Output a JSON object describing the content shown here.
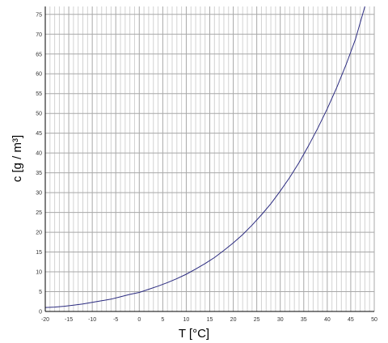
{
  "chart_data": {
    "type": "line",
    "title": "",
    "xlabel": "T [°C]",
    "ylabel": "c [g / m³]",
    "xlim": [
      -20,
      50
    ],
    "ylim": [
      0,
      77
    ],
    "x_ticks": [
      "-20",
      "-15",
      "-10",
      "-5",
      "0",
      "5",
      "10",
      "15",
      "20",
      "25",
      "30",
      "35",
      "40",
      "45",
      "50"
    ],
    "y_ticks": [
      "0",
      "5",
      "10",
      "15",
      "20",
      "25",
      "30",
      "35",
      "40",
      "45",
      "50",
      "55",
      "60",
      "65",
      "70",
      "75"
    ],
    "grid": true,
    "series_color": "#2b2b80",
    "series": [
      {
        "x": [
          -20,
          -18,
          -16,
          -14,
          -12,
          -10,
          -8,
          -6,
          -4,
          -2,
          0,
          2,
          4,
          6,
          8,
          10,
          12,
          14,
          16,
          18,
          20,
          22,
          24,
          26,
          28,
          30,
          32,
          34,
          36,
          38,
          40,
          42,
          44,
          46,
          48
        ],
        "y": [
          1.0,
          1.1,
          1.3,
          1.6,
          1.9,
          2.3,
          2.7,
          3.1,
          3.7,
          4.3,
          4.8,
          5.6,
          6.4,
          7.3,
          8.3,
          9.4,
          10.7,
          12.1,
          13.6,
          15.4,
          17.3,
          19.4,
          21.8,
          24.4,
          27.2,
          30.4,
          33.8,
          37.6,
          41.8,
          46.3,
          51.2,
          56.5,
          62.3,
          68.7,
          77.0
        ]
      }
    ]
  }
}
